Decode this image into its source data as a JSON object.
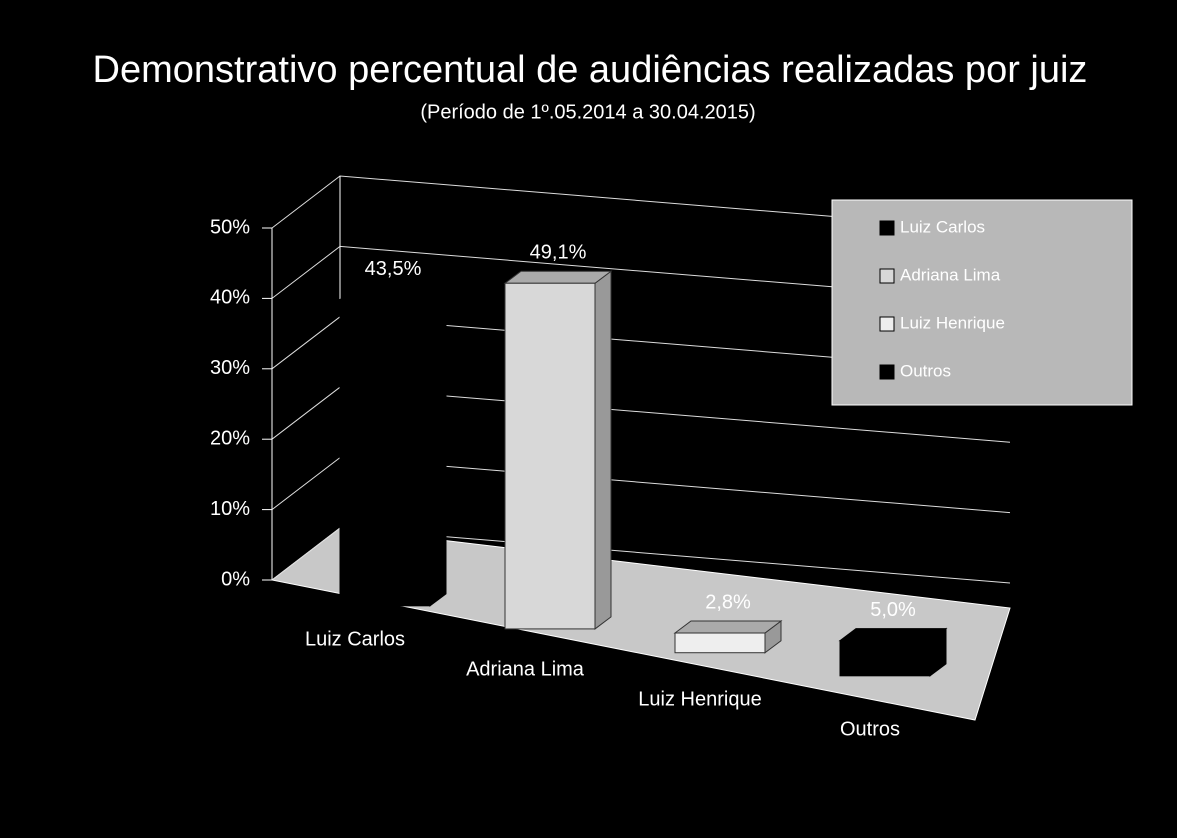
{
  "chart_data": {
    "type": "bar3d",
    "title": "Demonstrativo percentual de audiências realizadas por juiz",
    "subtitle": "(Período de 1º.05.2014  a  30.04.2015)",
    "categories": [
      "Luiz Carlos",
      "Adriana Lima",
      "Luiz Henrique",
      "Outros"
    ],
    "values": [
      43.5,
      49.1,
      2.8,
      5.0
    ],
    "value_labels": [
      "43,5%",
      "49,1%",
      "2,8%",
      "5,0%"
    ],
    "colors": [
      "#000000",
      "#d8d8d8",
      "#eeeeee",
      "#000000"
    ],
    "ylim": [
      0,
      50
    ],
    "yticks": [
      {
        "value": 0,
        "label": "0%"
      },
      {
        "value": 10,
        "label": "10%"
      },
      {
        "value": 20,
        "label": "20%"
      },
      {
        "value": 30,
        "label": "30%"
      },
      {
        "value": 40,
        "label": "40%"
      },
      {
        "value": 50,
        "label": "50%"
      }
    ],
    "grid": true,
    "legend": "right"
  }
}
